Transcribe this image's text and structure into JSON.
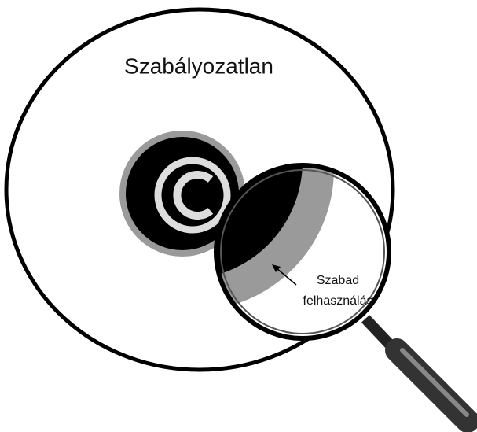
{
  "diagram": {
    "outer_label": "Szabályozatlan",
    "lens_label": [
      "Szabad",
      "felhasználás"
    ]
  }
}
